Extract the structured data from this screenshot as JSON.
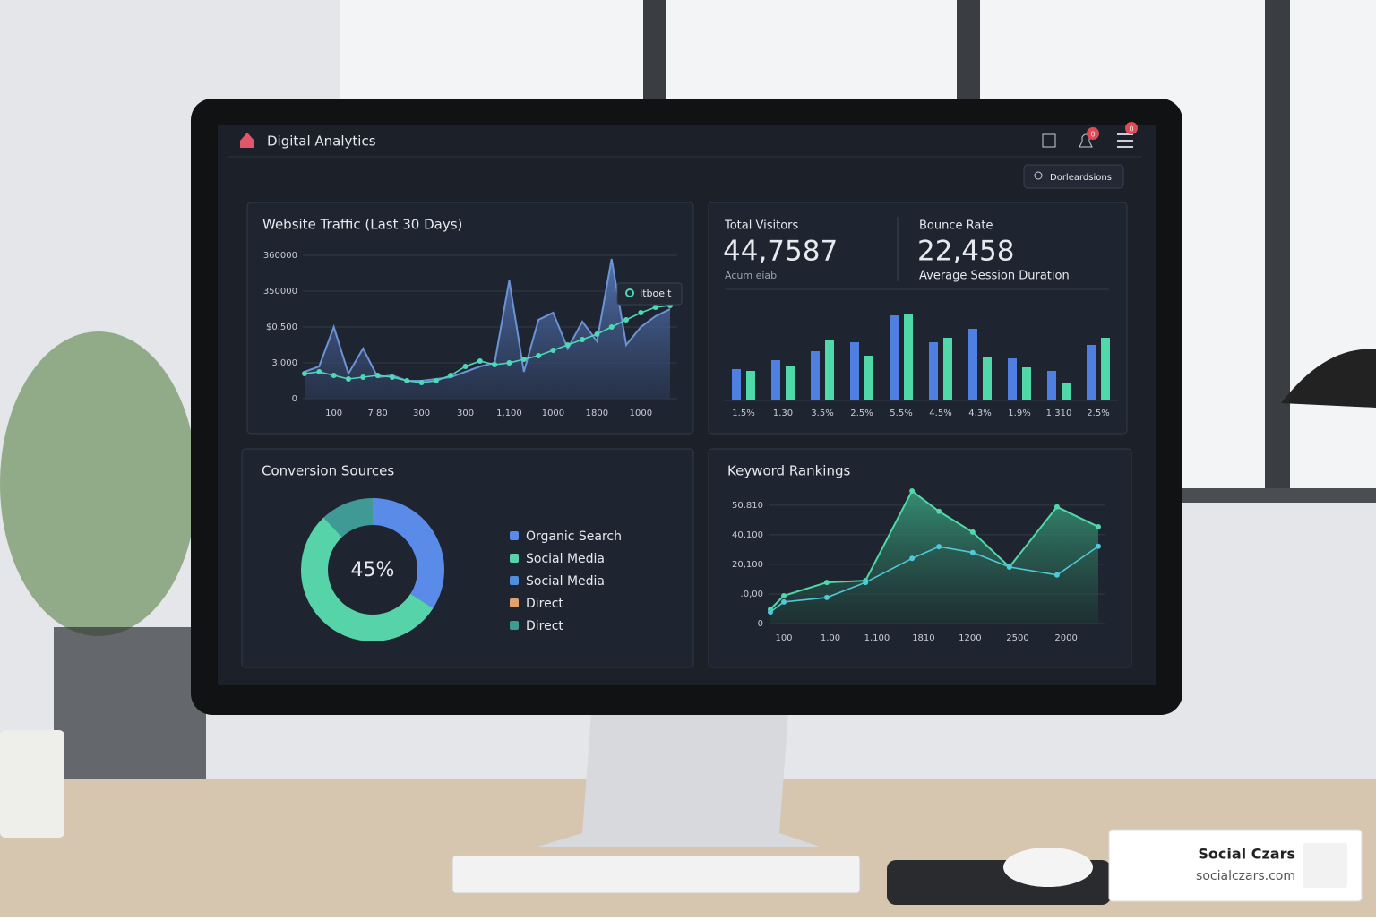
{
  "header": {
    "title": "Digital Analytics",
    "badges": [
      "0",
      "0"
    ]
  },
  "search": "Dorleardsions",
  "stats": [
    {
      "label": "Total Visitors",
      "value": "44,7587",
      "caption": "Acum eiab"
    },
    {
      "label": "Bounce Rate",
      "value": "22,458",
      "caption": "Average Session Duration"
    }
  ],
  "chart_data": [
    {
      "type": "area",
      "title": "Website Traffic (Last 30 Days)",
      "xlim": [
        0,
        25
      ],
      "xticks": [
        {
          "value": 2,
          "label": "100"
        },
        {
          "value": 5,
          "label": "7 80"
        },
        {
          "value": 8,
          "label": "300"
        },
        {
          "value": 11,
          "label": "300"
        },
        {
          "value": 14,
          "label": "1,100"
        },
        {
          "value": 17,
          "label": "1000"
        },
        {
          "value": 20,
          "label": "1800"
        },
        {
          "value": 23,
          "label": "1000"
        }
      ],
      "ylim": [
        0,
        40000
      ],
      "yticks": [
        0,
        {
          "value": 10000,
          "label": "3.000"
        },
        {
          "value": 20000,
          "label": "$0.500"
        },
        {
          "value": 30000,
          "label": "350000"
        },
        {
          "value": 40000,
          "label": "360000"
        }
      ],
      "grid": true,
      "annotation": "Itboelt",
      "series": [
        {
          "color": "#6b93d6",
          "fill": true,
          "values": [
            7500,
            9000,
            20000,
            7000,
            14000,
            6000,
            6500,
            5000,
            5000,
            5500,
            6000,
            7500,
            9000,
            10000,
            33000,
            7500,
            22000,
            24000,
            14000,
            21500,
            16000,
            39000,
            15000,
            20000,
            23000,
            25000
          ]
        },
        {
          "color": "#4fd8b8",
          "fill": false,
          "markers": true,
          "values": [
            7000,
            7500,
            6500,
            5500,
            6000,
            6500,
            6000,
            5000,
            4500,
            5000,
            6500,
            9000,
            10500,
            9500,
            10000,
            11000,
            12000,
            13500,
            15000,
            16500,
            18000,
            20000,
            22000,
            24000,
            25500,
            26000
          ]
        }
      ]
    },
    {
      "type": "bar",
      "categories": [
        "1.5%",
        "1.30",
        "3.5%",
        "2.5%",
        "5.5%",
        "4.5%",
        "4.3%",
        "1.9%",
        "1.310",
        "2.5%"
      ],
      "ylim": [
        0,
        100
      ],
      "series": [
        {
          "color": "#4f7fe0",
          "values": [
            35,
            45,
            55,
            65,
            95,
            65,
            80,
            47,
            33,
            62
          ]
        },
        {
          "color": "#4fd8a8",
          "values": [
            33,
            38,
            68,
            50,
            97,
            70,
            48,
            37,
            20,
            70
          ]
        }
      ]
    },
    {
      "type": "pie",
      "title": "Conversion Sources",
      "center_label": "45%",
      "categories": [
        "Organic Search",
        "Social Media",
        "Social Media",
        "Direct",
        "Direct"
      ],
      "colors": [
        "#5a8be8",
        "#56d3a8",
        "#4f8fe0",
        "#e0a070",
        "#3f9a96"
      ],
      "values": [
        34,
        54,
        0,
        0,
        12
      ]
    },
    {
      "type": "area",
      "title": "Keyword Rankings",
      "xlim": [
        0,
        10
      ],
      "xticks": [
        {
          "value": 0.41,
          "label": "100"
        },
        {
          "value": 1.83,
          "label": "1.00"
        },
        {
          "value": 3.25,
          "label": "1,100"
        },
        {
          "value": 4.67,
          "label": "1810"
        },
        {
          "value": 6.09,
          "label": "1200"
        },
        {
          "value": 7.54,
          "label": "2500"
        },
        {
          "value": 9.02,
          "label": "2000"
        }
      ],
      "ylim": [
        0,
        4.6
      ],
      "yticks": [
        0,
        {
          "value": 1,
          "label": ".0,00"
        },
        {
          "value": 2,
          "label": "20,100"
        },
        {
          "value": 3,
          "label": "40.100"
        },
        {
          "value": 4,
          "label": "50.810"
        }
      ],
      "grid": true,
      "x": [
        0,
        0.41,
        1.72,
        2.9,
        4.32,
        5.14,
        6.17,
        7.29,
        8.74,
        10
      ],
      "series": [
        {
          "color": "#4fd8a8",
          "fill": true,
          "markers": true,
          "values": [
            0.48,
            0.94,
            1.39,
            1.45,
            4.48,
            3.79,
            3.09,
            1.91,
            3.94,
            3.27
          ]
        },
        {
          "color": "#4fc8d8",
          "fill": false,
          "markers": true,
          "values": [
            0.39,
            0.73,
            0.88,
            1.39,
            2.2,
            2.6,
            2.4,
            1.91,
            1.64,
            2.61
          ]
        }
      ]
    }
  ],
  "watermark": {
    "name": "Social Czars",
    "url": "socialczars.com"
  }
}
